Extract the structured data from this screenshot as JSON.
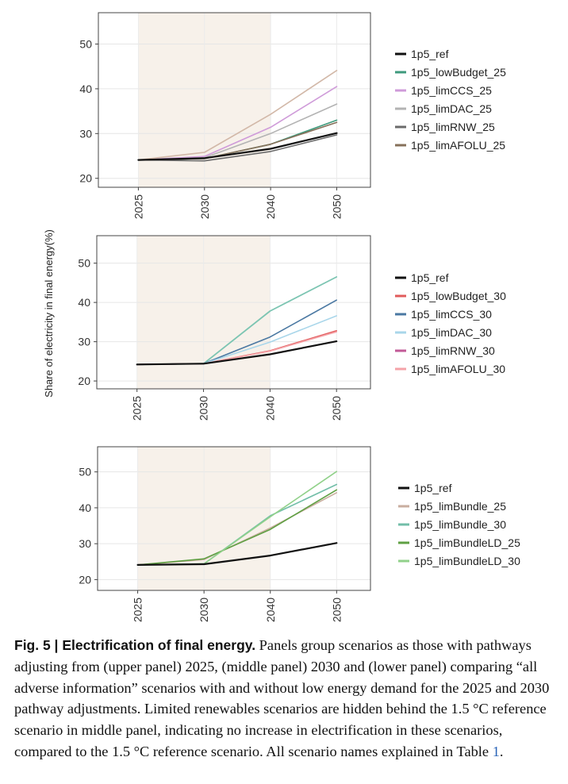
{
  "figure": {
    "ylabel": "Share of electricity in final energy(%)"
  },
  "chart_data": [
    {
      "type": "line",
      "panel": "upper",
      "x": [
        "2025",
        "2030",
        "2040",
        "2050"
      ],
      "ylim": [
        18,
        57
      ],
      "yticks": [
        20,
        30,
        40,
        50
      ],
      "shaded_x_range": [
        "2025",
        "2040"
      ],
      "grid": true,
      "legend_position": "right",
      "series": [
        {
          "name": "1p5_ref",
          "color": "#111111",
          "width": 2.2,
          "values": [
            24.1,
            24.5,
            26.6,
            30.1
          ]
        },
        {
          "name": "1p5_lowBudget_25",
          "color": "#3e9a7c",
          "width": 1.6,
          "values": [
            24.1,
            24.4,
            27.6,
            33.0
          ]
        },
        {
          "name": "1p5_limCCS_25",
          "color": "#cf9bd9",
          "width": 1.6,
          "values": [
            24.1,
            24.9,
            31.4,
            40.5
          ]
        },
        {
          "name": "1p5_limDAC_25",
          "color": "#b3b3b3",
          "width": 1.6,
          "values": [
            24.1,
            24.6,
            30.0,
            36.6
          ]
        },
        {
          "name": "1p5_limRNW_25",
          "color": "#6b6b6b",
          "width": 1.6,
          "values": [
            24.1,
            23.9,
            26.0,
            29.7
          ]
        },
        {
          "name": "1p5_limAFOLU_25",
          "color": "#86705a",
          "width": 1.6,
          "values": [
            24.1,
            24.4,
            27.6,
            32.5
          ]
        },
        {
          "name": "",
          "color": "#d2b8a8",
          "width": 1.6,
          "values": [
            24.1,
            25.8,
            34.3,
            44.1
          ]
        }
      ]
    },
    {
      "type": "line",
      "panel": "middle",
      "x": [
        "2025",
        "2030",
        "2040",
        "2050"
      ],
      "ylim": [
        18,
        57
      ],
      "yticks": [
        20,
        30,
        40,
        50
      ],
      "shaded_x_range": [
        "2025",
        "2040"
      ],
      "grid": true,
      "legend_position": "right",
      "series": [
        {
          "name": "",
          "color": "#7cc5b2",
          "width": 1.8,
          "values": [
            24.2,
            24.4,
            37.8,
            46.5
          ]
        },
        {
          "name": "1p5_ref",
          "color": "#111111",
          "width": 2.2,
          "values": [
            24.2,
            24.4,
            26.8,
            30.1
          ]
        },
        {
          "name": "1p5_lowBudget_30",
          "color": "#e15b5b",
          "width": 1.6,
          "values": [
            24.2,
            24.4,
            27.7,
            32.8
          ]
        },
        {
          "name": "1p5_limCCS_30",
          "color": "#4a78a2",
          "width": 1.6,
          "values": [
            24.2,
            24.4,
            31.2,
            40.6
          ]
        },
        {
          "name": "1p5_limDAC_30",
          "color": "#a9d6ea",
          "width": 1.6,
          "values": [
            24.2,
            24.4,
            29.9,
            36.6
          ]
        },
        {
          "name": "1p5_limRNW_30",
          "color": "#c25a97",
          "width": 1.6,
          "values": [
            24.2,
            24.4,
            26.8,
            30.1
          ]
        },
        {
          "name": "1p5_limAFOLU_30",
          "color": "#f5a3a8",
          "width": 1.6,
          "values": [
            24.2,
            24.4,
            27.6,
            32.5
          ]
        }
      ]
    },
    {
      "type": "line",
      "panel": "lower",
      "x": [
        "2025",
        "2030",
        "2040",
        "2050"
      ],
      "ylim": [
        17,
        57
      ],
      "yticks": [
        20,
        30,
        40,
        50
      ],
      "shaded_x_range": [
        "2025",
        "2040"
      ],
      "grid": true,
      "legend_position": "right",
      "series": [
        {
          "name": "1p5_ref",
          "color": "#111111",
          "width": 2.2,
          "values": [
            24.1,
            24.3,
            26.7,
            30.2
          ]
        },
        {
          "name": "1p5_limBundle_25",
          "color": "#c9ae9f",
          "width": 1.6,
          "values": [
            24.1,
            25.6,
            34.4,
            44.2
          ]
        },
        {
          "name": "1p5_limBundle_30",
          "color": "#72bea8",
          "width": 1.6,
          "values": [
            24.1,
            24.4,
            37.8,
            46.5
          ]
        },
        {
          "name": "1p5_limBundleLD_25",
          "color": "#5fa043",
          "width": 1.6,
          "values": [
            24.1,
            25.8,
            34.0,
            45.0
          ]
        },
        {
          "name": "1p5_limBundleLD_30",
          "color": "#91d18a",
          "width": 1.6,
          "values": [
            24.1,
            24.4,
            37.5,
            50.1
          ]
        }
      ]
    }
  ],
  "caption": {
    "label": "Fig. 5 | Electrification of final energy.",
    "text_before_ref": " Panels group scenarios as those with pathways adjusting from (upper panel) 2025, (middle panel) 2030 and (lower panel) comparing “all adverse information” scenarios with and without low energy demand for the 2025 and 2030 pathway adjustments. Limited renewables scenarios are hidden behind the 1.5 °C reference scenario in middle panel, indicating no increase in electrification in these scenarios, compared to the 1.5 °C reference scenario. All scenario names explained in Table ",
    "ref": "1",
    "text_after_ref": "."
  }
}
